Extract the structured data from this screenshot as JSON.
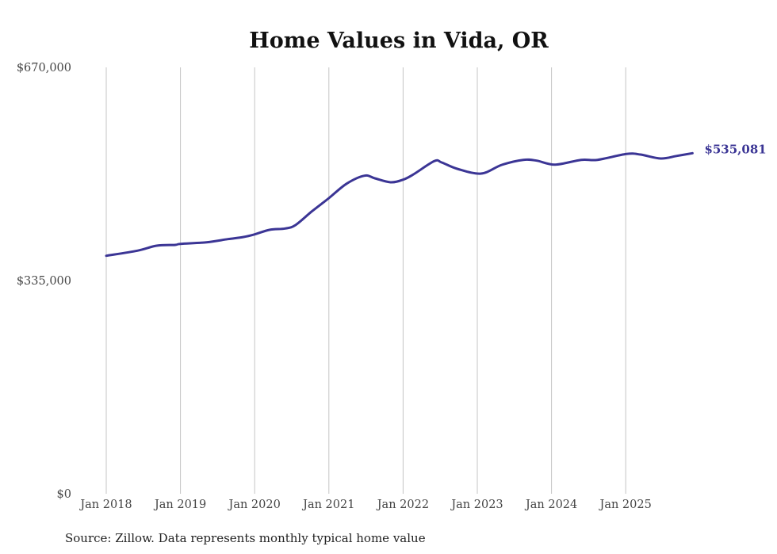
{
  "chart_data": {
    "type": "line",
    "title": "Home Values in Vida, OR",
    "xlabel": "",
    "ylabel": "",
    "ylim": [
      0,
      670000
    ],
    "y_ticks": [
      0,
      335000,
      670000
    ],
    "y_tick_labels": [
      "$0",
      "$335,000",
      "$670,000"
    ],
    "x_ticks": [
      2018,
      2019,
      2020,
      2021,
      2022,
      2023,
      2024,
      2025
    ],
    "x_tick_labels": [
      "Jan 2018",
      "Jan 2019",
      "Jan 2020",
      "Jan 2021",
      "Jan 2022",
      "Jan 2023",
      "Jan 2024",
      "Jan 2025"
    ],
    "xlim": [
      2018,
      2025.92
    ],
    "grid": "vertical",
    "series": [
      {
        "name": "Typical home value",
        "color": "#3b3595",
        "x": [
          2018.0,
          2018.42,
          2018.68,
          2018.93,
          2019.0,
          2019.35,
          2019.64,
          2019.85,
          2020.0,
          2020.2,
          2020.41,
          2020.55,
          2020.77,
          2021.0,
          2021.24,
          2021.48,
          2021.62,
          2021.83,
          2022.0,
          2022.14,
          2022.42,
          2022.52,
          2022.73,
          2023.05,
          2023.33,
          2023.62,
          2023.8,
          2024.05,
          2024.4,
          2024.62,
          2025.01,
          2025.2,
          2025.47,
          2025.69,
          2025.9
        ],
        "values": [
          374000,
          382000,
          389800,
          391000,
          392700,
          395200,
          400100,
          403500,
          407600,
          414700,
          416800,
          422200,
          443700,
          464500,
          487300,
          499800,
          495700,
          489400,
          493500,
          501900,
          522700,
          520600,
          510600,
          503100,
          516800,
          524700,
          523400,
          517200,
          524700,
          524700,
          533900,
          533000,
          526800,
          530900,
          535081
        ]
      }
    ],
    "end_label": "$535,081",
    "source": "Source: Zillow. Data represents monthly typical home value"
  }
}
